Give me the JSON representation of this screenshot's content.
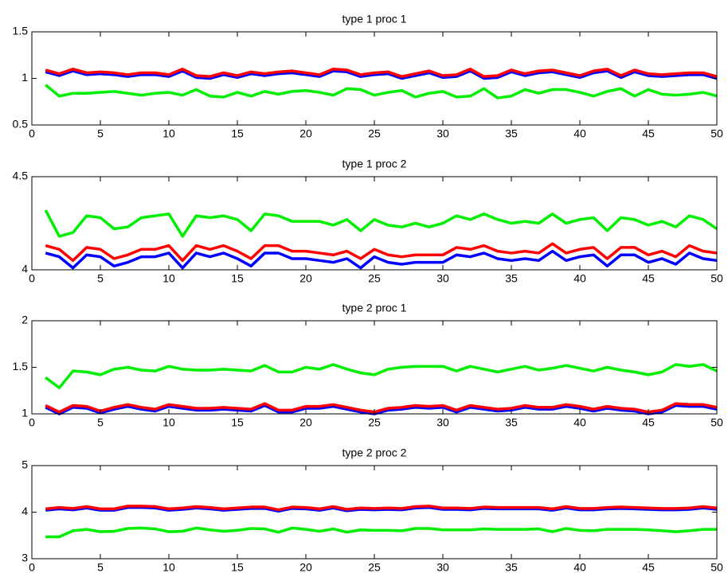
{
  "chart_data": [
    {
      "type": "line",
      "title": "type 1 proc 1",
      "x": [
        1,
        2,
        3,
        4,
        5,
        6,
        7,
        8,
        9,
        10,
        11,
        12,
        13,
        14,
        15,
        16,
        17,
        18,
        19,
        20,
        21,
        22,
        23,
        24,
        25,
        26,
        27,
        28,
        29,
        30,
        31,
        32,
        33,
        34,
        35,
        36,
        37,
        38,
        39,
        40,
        41,
        42,
        43,
        44,
        45,
        46,
        47,
        48,
        49,
        50
      ],
      "xlim": [
        0,
        50
      ],
      "xticks": [
        0,
        5,
        10,
        15,
        20,
        25,
        30,
        35,
        40,
        45,
        50
      ],
      "ylim": [
        0.5,
        1.5
      ],
      "yticks": [
        0.5,
        1,
        1.5
      ],
      "series": [
        {
          "color": "#0000ff",
          "values": [
            1.07,
            1.03,
            1.08,
            1.04,
            1.05,
            1.04,
            1.02,
            1.04,
            1.04,
            1.02,
            1.08,
            1.01,
            1.0,
            1.04,
            1.01,
            1.05,
            1.03,
            1.05,
            1.06,
            1.04,
            1.02,
            1.08,
            1.07,
            1.02,
            1.04,
            1.05,
            1.0,
            1.03,
            1.06,
            1.01,
            1.02,
            1.08,
            1.0,
            1.01,
            1.07,
            1.03,
            1.06,
            1.07,
            1.04,
            1.01,
            1.06,
            1.08,
            1.01,
            1.07,
            1.03,
            1.02,
            1.03,
            1.04,
            1.04,
            1.0
          ]
        },
        {
          "color": "#ff0000",
          "values": [
            1.09,
            1.05,
            1.1,
            1.06,
            1.07,
            1.06,
            1.04,
            1.06,
            1.06,
            1.04,
            1.1,
            1.03,
            1.02,
            1.06,
            1.03,
            1.07,
            1.05,
            1.07,
            1.08,
            1.06,
            1.04,
            1.1,
            1.09,
            1.04,
            1.06,
            1.07,
            1.02,
            1.05,
            1.08,
            1.03,
            1.04,
            1.1,
            1.02,
            1.03,
            1.09,
            1.05,
            1.08,
            1.09,
            1.06,
            1.03,
            1.08,
            1.1,
            1.03,
            1.09,
            1.05,
            1.04,
            1.05,
            1.06,
            1.06,
            1.02
          ]
        },
        {
          "color": "#00ee00",
          "values": [
            0.93,
            0.81,
            0.84,
            0.84,
            0.85,
            0.86,
            0.84,
            0.82,
            0.84,
            0.85,
            0.82,
            0.88,
            0.81,
            0.8,
            0.85,
            0.81,
            0.86,
            0.83,
            0.86,
            0.87,
            0.85,
            0.82,
            0.89,
            0.88,
            0.82,
            0.85,
            0.87,
            0.8,
            0.84,
            0.86,
            0.8,
            0.81,
            0.89,
            0.79,
            0.81,
            0.88,
            0.84,
            0.88,
            0.88,
            0.85,
            0.81,
            0.86,
            0.89,
            0.81,
            0.88,
            0.83,
            0.82,
            0.83,
            0.85,
            0.81
          ]
        }
      ]
    },
    {
      "type": "line",
      "title": "type 1 proc 2",
      "x": [
        1,
        2,
        3,
        4,
        5,
        6,
        7,
        8,
        9,
        10,
        11,
        12,
        13,
        14,
        15,
        16,
        17,
        18,
        19,
        20,
        21,
        22,
        23,
        24,
        25,
        26,
        27,
        28,
        29,
        30,
        31,
        32,
        33,
        34,
        35,
        36,
        37,
        38,
        39,
        40,
        41,
        42,
        43,
        44,
        45,
        46,
        47,
        48,
        49,
        50
      ],
      "xlim": [
        0,
        50
      ],
      "xticks": [
        0,
        5,
        10,
        15,
        20,
        25,
        30,
        35,
        40,
        45,
        50
      ],
      "ylim": [
        4,
        4.5
      ],
      "yticks": [
        4,
        4.5
      ],
      "series": [
        {
          "color": "#0000ff",
          "values": [
            4.09,
            4.07,
            4.01,
            4.08,
            4.07,
            4.02,
            4.04,
            4.07,
            4.07,
            4.09,
            4.01,
            4.09,
            4.07,
            4.09,
            4.06,
            4.02,
            4.09,
            4.09,
            4.06,
            4.06,
            4.05,
            4.04,
            4.06,
            4.01,
            4.07,
            4.04,
            4.03,
            4.04,
            4.04,
            4.04,
            4.08,
            4.07,
            4.09,
            4.06,
            4.05,
            4.06,
            4.05,
            4.1,
            4.05,
            4.07,
            4.08,
            4.02,
            4.08,
            4.08,
            4.04,
            4.06,
            4.03,
            4.09,
            4.06,
            4.05
          ]
        },
        {
          "color": "#ff0000",
          "values": [
            4.13,
            4.11,
            4.05,
            4.12,
            4.11,
            4.06,
            4.08,
            4.11,
            4.11,
            4.13,
            4.05,
            4.13,
            4.11,
            4.13,
            4.1,
            4.06,
            4.13,
            4.13,
            4.1,
            4.1,
            4.09,
            4.08,
            4.1,
            4.06,
            4.11,
            4.08,
            4.07,
            4.08,
            4.08,
            4.08,
            4.12,
            4.11,
            4.13,
            4.1,
            4.09,
            4.1,
            4.09,
            4.14,
            4.09,
            4.11,
            4.12,
            4.06,
            4.12,
            4.12,
            4.08,
            4.1,
            4.07,
            4.13,
            4.1,
            4.09
          ]
        },
        {
          "color": "#00ee00",
          "values": [
            4.32,
            4.18,
            4.2,
            4.29,
            4.28,
            4.22,
            4.23,
            4.28,
            4.29,
            4.3,
            4.18,
            4.29,
            4.28,
            4.29,
            4.27,
            4.21,
            4.3,
            4.29,
            4.26,
            4.26,
            4.26,
            4.24,
            4.27,
            4.21,
            4.27,
            4.24,
            4.23,
            4.25,
            4.23,
            4.25,
            4.29,
            4.27,
            4.3,
            4.27,
            4.25,
            4.26,
            4.25,
            4.3,
            4.25,
            4.27,
            4.28,
            4.21,
            4.28,
            4.27,
            4.24,
            4.26,
            4.23,
            4.29,
            4.27,
            4.22
          ]
        }
      ]
    },
    {
      "type": "line",
      "title": "type 2 proc 1",
      "x": [
        1,
        2,
        3,
        4,
        5,
        6,
        7,
        8,
        9,
        10,
        11,
        12,
        13,
        14,
        15,
        16,
        17,
        18,
        19,
        20,
        21,
        22,
        23,
        24,
        25,
        26,
        27,
        28,
        29,
        30,
        31,
        32,
        33,
        34,
        35,
        36,
        37,
        38,
        39,
        40,
        41,
        42,
        43,
        44,
        45,
        46,
        47,
        48,
        49,
        50
      ],
      "xlim": [
        0,
        50
      ],
      "xticks": [
        0,
        5,
        10,
        15,
        20,
        25,
        30,
        35,
        40,
        45,
        50
      ],
      "ylim": [
        1,
        2
      ],
      "yticks": [
        1,
        1.5,
        2
      ],
      "series": [
        {
          "color": "#0000ff",
          "values": [
            1.07,
            1.0,
            1.07,
            1.06,
            1.01,
            1.05,
            1.08,
            1.05,
            1.03,
            1.08,
            1.06,
            1.04,
            1.04,
            1.05,
            1.04,
            1.03,
            1.09,
            1.02,
            1.02,
            1.06,
            1.06,
            1.08,
            1.05,
            1.02,
            1.0,
            1.04,
            1.05,
            1.07,
            1.06,
            1.07,
            1.02,
            1.07,
            1.05,
            1.03,
            1.04,
            1.07,
            1.05,
            1.05,
            1.08,
            1.06,
            1.03,
            1.06,
            1.04,
            1.03,
            1.0,
            1.02,
            1.09,
            1.08,
            1.08,
            1.05
          ]
        },
        {
          "color": "#ff0000",
          "values": [
            1.09,
            1.02,
            1.09,
            1.08,
            1.03,
            1.07,
            1.1,
            1.07,
            1.05,
            1.1,
            1.08,
            1.06,
            1.06,
            1.07,
            1.06,
            1.05,
            1.11,
            1.04,
            1.04,
            1.08,
            1.08,
            1.1,
            1.07,
            1.04,
            1.02,
            1.06,
            1.07,
            1.09,
            1.08,
            1.09,
            1.04,
            1.09,
            1.07,
            1.05,
            1.06,
            1.09,
            1.07,
            1.07,
            1.1,
            1.08,
            1.05,
            1.08,
            1.06,
            1.05,
            1.02,
            1.04,
            1.11,
            1.1,
            1.1,
            1.07
          ]
        },
        {
          "color": "#00ee00",
          "values": [
            1.39,
            1.28,
            1.46,
            1.45,
            1.42,
            1.48,
            1.5,
            1.47,
            1.46,
            1.51,
            1.48,
            1.47,
            1.47,
            1.48,
            1.47,
            1.46,
            1.52,
            1.45,
            1.45,
            1.5,
            1.48,
            1.53,
            1.48,
            1.44,
            1.42,
            1.48,
            1.5,
            1.51,
            1.51,
            1.51,
            1.46,
            1.51,
            1.48,
            1.45,
            1.48,
            1.51,
            1.47,
            1.49,
            1.52,
            1.49,
            1.46,
            1.5,
            1.47,
            1.45,
            1.42,
            1.45,
            1.53,
            1.51,
            1.53,
            1.46
          ]
        }
      ]
    },
    {
      "type": "line",
      "title": "type 2 proc 2",
      "x": [
        1,
        2,
        3,
        4,
        5,
        6,
        7,
        8,
        9,
        10,
        11,
        12,
        13,
        14,
        15,
        16,
        17,
        18,
        19,
        20,
        21,
        22,
        23,
        24,
        25,
        26,
        27,
        28,
        29,
        30,
        31,
        32,
        33,
        34,
        35,
        36,
        37,
        38,
        39,
        40,
        41,
        42,
        43,
        44,
        45,
        46,
        47,
        48,
        49,
        50
      ],
      "xlim": [
        0,
        50
      ],
      "xticks": [
        0,
        5,
        10,
        15,
        20,
        25,
        30,
        35,
        40,
        45,
        50
      ],
      "ylim": [
        3,
        5
      ],
      "yticks": [
        3,
        4,
        5
      ],
      "series": [
        {
          "color": "#0000ff",
          "values": [
            4.04,
            4.07,
            4.05,
            4.09,
            4.04,
            4.04,
            4.1,
            4.1,
            4.09,
            4.04,
            4.06,
            4.09,
            4.07,
            4.04,
            4.06,
            4.08,
            4.08,
            4.02,
            4.08,
            4.07,
            4.04,
            4.09,
            4.03,
            4.06,
            4.05,
            4.06,
            4.05,
            4.09,
            4.1,
            4.06,
            4.06,
            4.05,
            4.08,
            4.07,
            4.07,
            4.07,
            4.07,
            4.04,
            4.09,
            4.05,
            4.05,
            4.07,
            4.08,
            4.07,
            4.06,
            4.05,
            4.05,
            4.06,
            4.09,
            4.06
          ]
        },
        {
          "color": "#ff0000",
          "values": [
            4.07,
            4.1,
            4.08,
            4.12,
            4.07,
            4.07,
            4.13,
            4.13,
            4.12,
            4.07,
            4.09,
            4.12,
            4.1,
            4.07,
            4.09,
            4.11,
            4.11,
            4.05,
            4.11,
            4.1,
            4.07,
            4.12,
            4.06,
            4.09,
            4.08,
            4.09,
            4.08,
            4.12,
            4.13,
            4.09,
            4.09,
            4.08,
            4.11,
            4.1,
            4.1,
            4.1,
            4.1,
            4.07,
            4.12,
            4.08,
            4.08,
            4.1,
            4.11,
            4.1,
            4.09,
            4.08,
            4.08,
            4.09,
            4.12,
            4.09
          ]
        },
        {
          "color": "#00ee00",
          "values": [
            3.47,
            3.47,
            3.6,
            3.63,
            3.58,
            3.59,
            3.65,
            3.66,
            3.64,
            3.58,
            3.59,
            3.66,
            3.62,
            3.59,
            3.61,
            3.65,
            3.64,
            3.57,
            3.66,
            3.63,
            3.59,
            3.64,
            3.57,
            3.62,
            3.61,
            3.61,
            3.6,
            3.65,
            3.65,
            3.62,
            3.62,
            3.62,
            3.64,
            3.63,
            3.63,
            3.63,
            3.64,
            3.58,
            3.65,
            3.61,
            3.6,
            3.63,
            3.63,
            3.63,
            3.62,
            3.6,
            3.58,
            3.6,
            3.63,
            3.63
          ]
        }
      ]
    }
  ]
}
